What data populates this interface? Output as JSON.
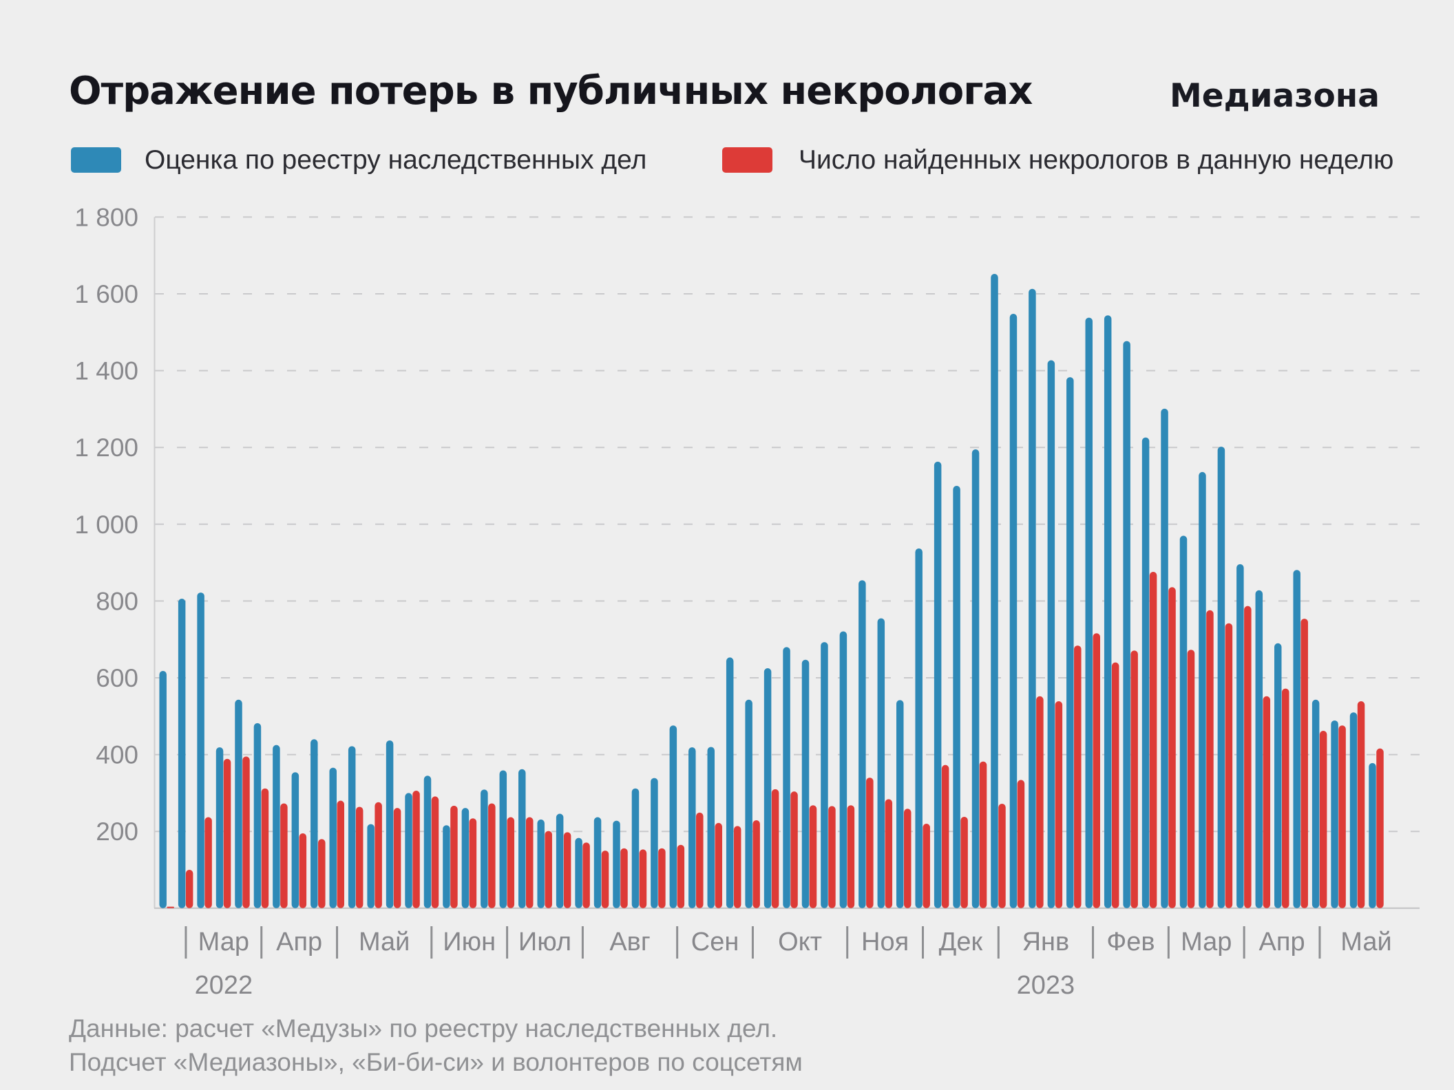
{
  "header": {
    "title": "Отражение потерь в публичных некрологах",
    "logo": "Медиазона"
  },
  "legend": [
    {
      "label": "Оценка по реестру наследственных дел",
      "color": "#2E89B7"
    },
    {
      "label": "Число найденных некрологов в данную неделю",
      "color": "#DD3B37"
    }
  ],
  "footer": {
    "line1": "Данные: расчет «Медузы» по реестру наследственных дел.",
    "line2": "Подсчет «Медиазоны», «Би-би-си» и волонтеров по соцсетям"
  },
  "chart_data": {
    "type": "bar",
    "title": "Отражение потерь в публичных некрологах",
    "xlabel": "",
    "ylabel": "",
    "ylim": [
      0,
      1800
    ],
    "grid": "dashed-horizontal",
    "legend_position": "top",
    "x_unit": "week",
    "y_axis": {
      "tick_values": [
        200,
        400,
        600,
        800,
        1000,
        1200,
        1400,
        1600,
        1800
      ],
      "tick_labels": [
        "200",
        "400",
        "600",
        "800",
        "1 000",
        "1 200",
        "1 400",
        "1 600",
        "1 800"
      ]
    },
    "x_axis": {
      "lead_weeks": 1,
      "months": [
        {
          "label": "Мар",
          "weeks": 4
        },
        {
          "label": "Апр",
          "weeks": 4
        },
        {
          "label": "Май",
          "weeks": 5
        },
        {
          "label": "Июн",
          "weeks": 4
        },
        {
          "label": "Июл",
          "weeks": 4
        },
        {
          "label": "Авг",
          "weeks": 5
        },
        {
          "label": "Сен",
          "weeks": 4
        },
        {
          "label": "Окт",
          "weeks": 5
        },
        {
          "label": "Ноя",
          "weeks": 4
        },
        {
          "label": "Дек",
          "weeks": 4
        },
        {
          "label": "Янв",
          "weeks": 5
        },
        {
          "label": "Фев",
          "weeks": 4
        },
        {
          "label": "Мар",
          "weeks": 4
        },
        {
          "label": "Апр",
          "weeks": 4
        },
        {
          "label": "Май",
          "weeks": 4
        }
      ],
      "years": [
        {
          "label": "2022",
          "month_index": 0
        },
        {
          "label": "2023",
          "month_index": 10
        }
      ]
    },
    "series": [
      {
        "name": "Оценка по реестру наследственных дел",
        "color": "#2E89B7",
        "values": [
          618,
          806,
          822,
          419,
          543,
          482,
          425,
          354,
          440,
          366,
          422,
          219,
          437,
          300,
          345,
          216,
          261,
          309,
          359,
          362,
          231,
          246,
          183,
          237,
          228,
          312,
          339,
          476,
          419,
          420,
          653,
          543,
          625,
          680,
          647,
          693,
          721,
          854,
          755,
          542,
          937,
          1163,
          1100,
          1195,
          1652,
          1548,
          1613,
          1427,
          1383,
          1538,
          1544,
          1477,
          1226,
          1301,
          970,
          1136,
          1202,
          896,
          828,
          690,
          881,
          543,
          489,
          510,
          378
        ]
      },
      {
        "name": "Число найденных некрологов в данную неделю",
        "color": "#DD3B37",
        "values": [
          4,
          100,
          237,
          389,
          395,
          312,
          273,
          195,
          180,
          280,
          264,
          276,
          261,
          306,
          291,
          267,
          234,
          273,
          237,
          237,
          201,
          198,
          171,
          150,
          156,
          153,
          156,
          165,
          249,
          222,
          214,
          229,
          310,
          304,
          268,
          266,
          268,
          340,
          284,
          259,
          220,
          373,
          238,
          382,
          272,
          334,
          552,
          539,
          684,
          716,
          640,
          671,
          876,
          836,
          673,
          776,
          742,
          787,
          552,
          572,
          754,
          462,
          476,
          539,
          416
        ]
      }
    ],
    "colors": {
      "background": "#EEEEEE",
      "grid": "#C9C9CB",
      "axis_text": "#87878B"
    }
  }
}
